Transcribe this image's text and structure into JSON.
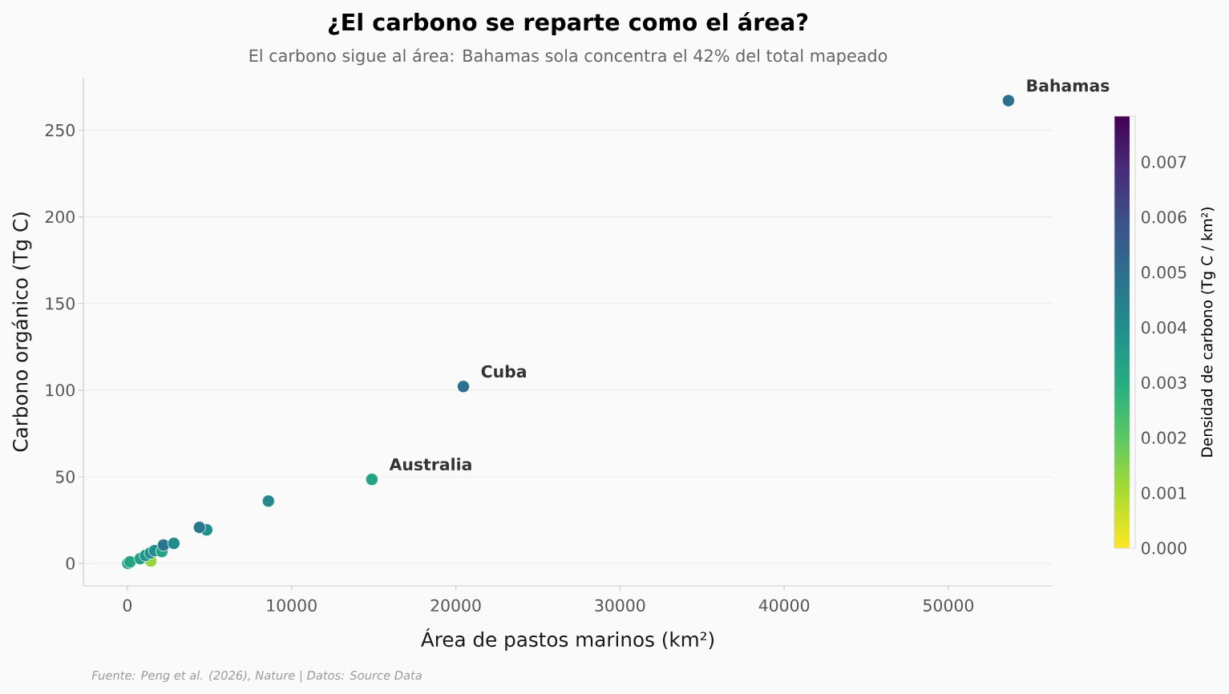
{
  "chart_data": {
    "type": "scatter",
    "title": "¿El carbono se reparte como el área?",
    "subtitle": "El carbono sigue al área: Bahamas sola concentra el 42% del total mapeado",
    "xlabel": "Área de pastos marinos (km²)",
    "ylabel": "Carbono orgánico (Tg C)",
    "clabel": "Densidad de carbono (Tg C / km²)",
    "x": [
      1430,
      30,
      160,
      780,
      1100,
      1400,
      1660,
      2100,
      2200,
      2830,
      4830,
      4390,
      8590,
      14890,
      20460,
      53660
    ],
    "values": [
      1.4,
      0.1,
      0.9,
      2.8,
      4.6,
      6.0,
      7.4,
      6.9,
      10.6,
      11.6,
      19.4,
      20.8,
      36.0,
      48.5,
      102.1,
      267.1
    ],
    "cvalues": [
      0.0013,
      0.0034,
      0.0033,
      0.0035,
      0.0038,
      0.0039,
      0.004,
      0.0033,
      0.0048,
      0.0041,
      0.004,
      0.0047,
      0.0042,
      0.0033,
      0.005,
      0.005
    ],
    "clim": [
      0,
      0.00783
    ],
    "cticks": [
      {
        "value": 0,
        "label": "0.000"
      },
      {
        "value": 0.001,
        "label": "0.001"
      },
      {
        "value": 0.002,
        "label": "0.002"
      },
      {
        "value": 0.003,
        "label": "0.003"
      },
      {
        "value": 0.004,
        "label": "0.004"
      },
      {
        "value": 0.005,
        "label": "0.005"
      },
      {
        "value": 0.006,
        "label": "0.006"
      },
      {
        "value": 0.007,
        "label": "0.007"
      }
    ],
    "xlim": [
      -2680,
      56350
    ],
    "ylim": [
      -12.9,
      280.3
    ],
    "xticks": [
      0,
      10000,
      20000,
      30000,
      40000,
      50000
    ],
    "yticks": [
      0,
      50,
      100,
      150,
      200,
      250
    ],
    "grid": "y",
    "marker": "circle",
    "annotations": [
      {
        "text": "Bahamas",
        "x": 53660,
        "y": 267.1
      },
      {
        "text": "Cuba",
        "x": 20460,
        "y": 102.1
      },
      {
        "text": "Australia",
        "x": 14890,
        "y": 48.5
      },
      "Fuente: Peng et al. (2026), Nature | Datos: Source Data"
    ]
  }
}
